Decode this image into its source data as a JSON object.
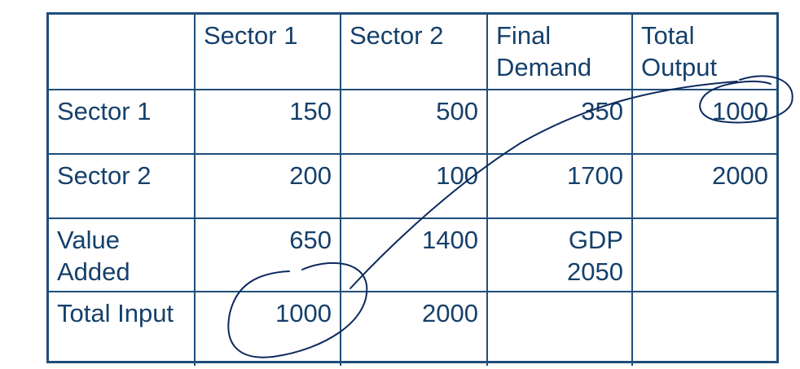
{
  "table": {
    "header": [
      "",
      "Sector 1",
      "Sector 2",
      [
        "Final",
        "Demand"
      ],
      [
        "Total",
        "Output"
      ]
    ],
    "rows": [
      {
        "label": [
          "Sector 1"
        ],
        "cells": [
          [
            "150"
          ],
          [
            "500"
          ],
          [
            "350"
          ],
          [
            "1000"
          ]
        ]
      },
      {
        "label": [
          "Sector 2"
        ],
        "cells": [
          [
            "200"
          ],
          [
            "100"
          ],
          [
            "1700"
          ],
          [
            "2000"
          ]
        ]
      },
      {
        "label": [
          "Value",
          "Added"
        ],
        "cells": [
          [
            "650"
          ],
          [
            "1400"
          ],
          [
            "GDP",
            "2050"
          ],
          [
            ""
          ]
        ]
      },
      {
        "label": [
          "Total Input"
        ],
        "cells": [
          [
            "1000"
          ],
          [
            "2000"
          ],
          [
            ""
          ],
          [
            ""
          ]
        ]
      }
    ]
  },
  "annotation": {
    "ink_color": "#0d2a5e",
    "description_marks": [
      "circle-total-output-1000",
      "circle-total-input-1000",
      "connecting-arrow-line"
    ]
  }
}
